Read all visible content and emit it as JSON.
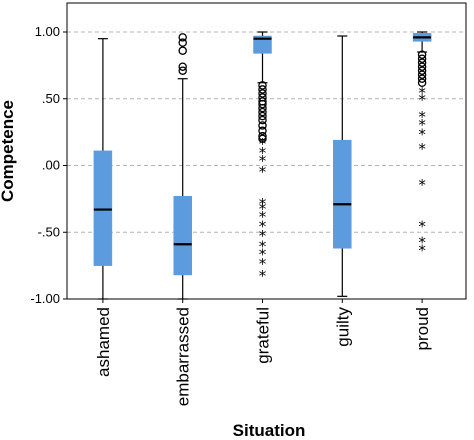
{
  "chart_data": {
    "type": "boxplot",
    "xlabel": "Situation",
    "ylabel": "Competence",
    "ylim": [
      -1.0,
      1.0
    ],
    "yticks": [
      1.0,
      0.5,
      0.0,
      -0.5,
      -1.0
    ],
    "ytick_labels": [
      "1.00",
      ".50",
      ".00",
      "-.50",
      "-1.00"
    ],
    "grid": "horizontal-dashed",
    "box_color": "#5b9bde",
    "categories": [
      "ashamed",
      "embarrassed",
      "grateful",
      "guilty",
      "proud"
    ],
    "boxes": [
      {
        "category": "ashamed",
        "whisker_low": -1.0,
        "q1": -0.75,
        "median": -0.33,
        "q3": 0.11,
        "whisker_high": 0.95,
        "outliers": [],
        "extremes": []
      },
      {
        "category": "embarrassed",
        "whisker_low": -1.0,
        "q1": -0.82,
        "median": -0.59,
        "q3": -0.23,
        "whisker_high": 0.65,
        "outliers": [
          0.71,
          0.74,
          0.86,
          0.92,
          0.96
        ],
        "extremes": []
      },
      {
        "category": "grateful",
        "whisker_low": 0.62,
        "q1": 0.84,
        "median": 0.95,
        "q3": 0.97,
        "whisker_high": 1.0,
        "outliers": [
          0.6,
          0.57,
          0.54,
          0.51,
          0.48,
          0.46,
          0.43,
          0.4,
          0.37,
          0.34,
          0.3,
          0.26,
          0.22,
          0.2
        ],
        "extremes": [
          0.17,
          0.1,
          0.04,
          -0.04,
          -0.28,
          -0.32,
          -0.38,
          -0.45,
          -0.52,
          -0.6,
          -0.66,
          -0.73,
          -0.82
        ]
      },
      {
        "category": "guilty",
        "whisker_low": -0.98,
        "q1": -0.62,
        "median": -0.29,
        "q3": 0.19,
        "whisker_high": 0.97,
        "outliers": [],
        "extremes": []
      },
      {
        "category": "proud",
        "whisker_low": 0.85,
        "q1": 0.93,
        "median": 0.96,
        "q3": 0.99,
        "whisker_high": 1.0,
        "outliers": [
          0.83,
          0.8,
          0.77,
          0.74,
          0.71,
          0.68,
          0.65,
          0.62
        ],
        "extremes": [
          0.55,
          0.5,
          0.37,
          0.31,
          0.24,
          0.13,
          -0.14,
          -0.45,
          -0.57,
          -0.63
        ]
      }
    ]
  }
}
